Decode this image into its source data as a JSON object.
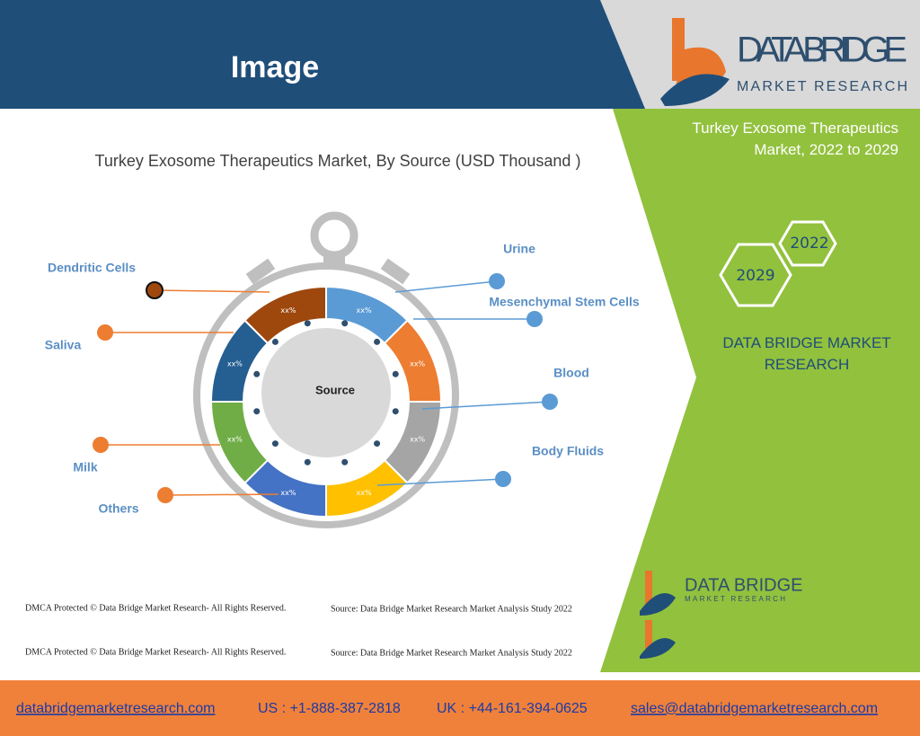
{
  "header": {
    "title": "Image",
    "logo_name": "DATA BRIDGE",
    "logo_sub": "MARKET RESEARCH"
  },
  "figure": {
    "title": "Turkey Exosome Therapeutics Market, By Source (USD Thousand )",
    "center_label": "Source",
    "segments": [
      {
        "name": "Urine",
        "label": "xx%",
        "color": "#5b9bd5"
      },
      {
        "name": "Mesenchymal Stem Cells",
        "label": "xx%",
        "color": "#ed7d31"
      },
      {
        "name": "Blood",
        "label": "xx%",
        "color": "#a5a5a5"
      },
      {
        "name": "Body Fluids",
        "label": "xx%",
        "color": "#ffc000"
      },
      {
        "name": "Others",
        "label": "xx%",
        "color": "#4472c4"
      },
      {
        "name": "Milk",
        "label": "xx%",
        "color": "#70ad47"
      },
      {
        "name": "Saliva",
        "label": "xx%",
        "color": "#255e91"
      },
      {
        "name": "Dendritic Cells",
        "label": "xx%",
        "color": "#9e480e"
      }
    ]
  },
  "sidebar": {
    "title": "Turkey Exosome Therapeutics Market, 2022 to 2029",
    "years": [
      "2022",
      "2029"
    ],
    "brand": "DATA BRIDGE MARKET RESEARCH",
    "logo_name": "DATA BRIDGE",
    "logo_sub": "MARKET RESEARCH"
  },
  "notes": [
    {
      "copyright": "DMCA Protected © Data Bridge Market Research- All Rights Reserved.",
      "source": "Source: Data Bridge Market Research Market Analysis Study 2022"
    },
    {
      "copyright": "DMCA Protected © Data Bridge Market Research- All Rights Reserved.",
      "source": "Source: Data Bridge Market Research Market Analysis Study 2022"
    }
  ],
  "footer": {
    "website": "databridgemarketresearch.com",
    "us_phone": "US : +1-888-387-2818",
    "uk_phone": "UK : +44-161-394-0625",
    "email": "sales@databridgemarketresearch.com"
  }
}
